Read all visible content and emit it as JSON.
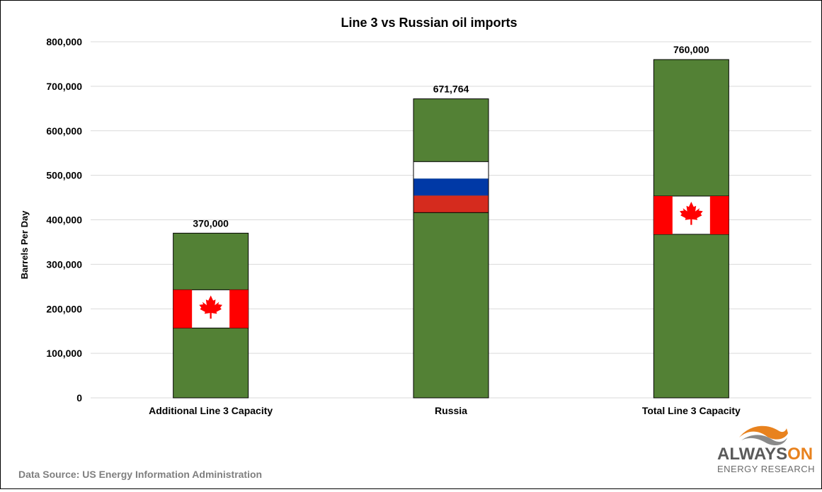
{
  "chart_data": {
    "type": "bar",
    "title": "Line 3 vs Russian oil imports",
    "xlabel": "",
    "ylabel": "Barrels Per Day",
    "categories": [
      "Additional Line 3 Capacity",
      "Russia",
      "Total Line 3 Capacity"
    ],
    "values": [
      370000,
      671764,
      760000
    ],
    "data_labels": [
      "370,000",
      "671,764",
      "760,000"
    ],
    "flags": [
      "canada",
      "russia",
      "canada"
    ],
    "ylim": [
      0,
      800000
    ],
    "yticks": [
      0,
      100000,
      200000,
      300000,
      400000,
      500000,
      600000,
      700000,
      800000
    ],
    "ytick_labels": [
      "0",
      "100,000",
      "200,000",
      "300,000",
      "400,000",
      "500,000",
      "600,000",
      "700,000",
      "800,000"
    ],
    "grid": true,
    "legend": "none",
    "bar_color": "#538135"
  },
  "footer": {
    "source": "Data Source: US Energy Information Administration"
  },
  "logo": {
    "brand_main": "ALWAYS",
    "brand_on": "ON",
    "brand_sub": "ENERGY RESEARCH",
    "icon": "swoosh-logo-icon"
  },
  "colors": {
    "bar": "#538135",
    "gridline": "#d9d9d9",
    "canada_red": "#ff0000",
    "russia_white": "#ffffff",
    "russia_blue": "#0039a6",
    "russia_red": "#d52b1e",
    "logo_orange": "#e8821e",
    "logo_gray": "#5a5a5a"
  }
}
